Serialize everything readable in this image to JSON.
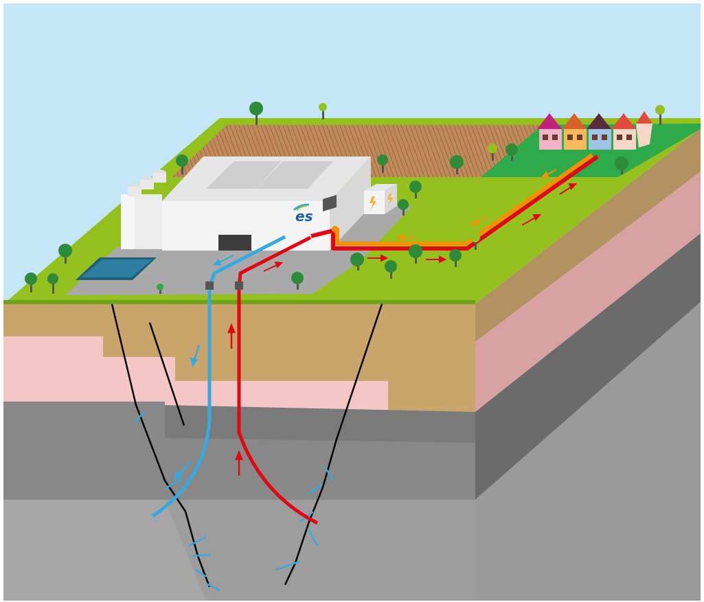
{
  "logo": {
    "text": "es",
    "name": "es-logo"
  },
  "colors": {
    "sky": "#c5e6f7",
    "grass": "#95c11f",
    "grass_dark": "#2eaa4a",
    "field": "#c08b5c",
    "field_stripes": "#9c6437",
    "soil_front": "#c9a46b",
    "soil_side": "#b29260",
    "pink_front": "#f5c6c6",
    "pink_side": "#d9a2a2",
    "rock_dark_front": "#7a7a7a",
    "rock_dark_side": "#6b6b6b",
    "rock_light_front": "#9d9d9d",
    "rock_light_side": "#9a9a9a",
    "cold_pipe": "#36a9e1",
    "hot_pipe": "#e30613",
    "heat_network": "#f39200",
    "building": "#f2f2f2",
    "pond": "#2c7fa0"
  },
  "icons": [
    "lightning-icon",
    "tree-icon",
    "house-icon",
    "arrow-icon"
  ]
}
